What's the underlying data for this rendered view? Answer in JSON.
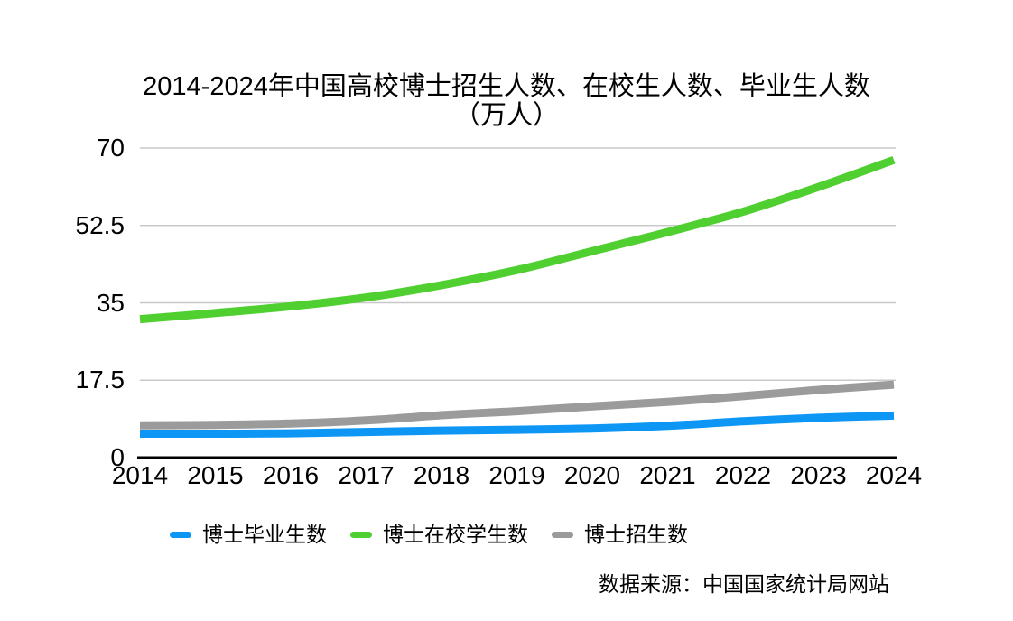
{
  "title": {
    "line1": "2014-2024年中国高校博士招生人数、在校生人数、毕业生人数",
    "line2": "（万人）"
  },
  "source": "数据来源：中国国家统计局网站",
  "colors": {
    "blue": "#0E96F5",
    "green": "#50D030",
    "gray": "#9B9B9B",
    "gridline": "#C8C8C8",
    "axis": "#000000",
    "text": "#000000",
    "background": "#FFFFFF"
  },
  "chart_data": {
    "type": "line",
    "title": "2014-2024年中国高校博士招生人数、在校生人数、毕业生人数（万人）",
    "xlabel": "",
    "ylabel": "",
    "x": [
      2014,
      2015,
      2016,
      2017,
      2018,
      2019,
      2020,
      2021,
      2022,
      2023,
      2024
    ],
    "series": [
      {
        "name": "博士毕业生数",
        "color": "#0E96F5",
        "values": [
          5.4,
          5.4,
          5.5,
          5.8,
          6.1,
          6.3,
          6.6,
          7.2,
          8.2,
          9.0,
          9.5
        ]
      },
      {
        "name": "博士在校学生数",
        "color": "#50D030",
        "values": [
          31.3,
          32.7,
          34.2,
          36.2,
          39.0,
          42.4,
          46.7,
          51.0,
          55.6,
          61.2,
          67.3
        ]
      },
      {
        "name": "博士招生数",
        "color": "#9B9B9B",
        "values": [
          7.3,
          7.4,
          7.7,
          8.4,
          9.6,
          10.5,
          11.6,
          12.6,
          13.9,
          15.3,
          16.5
        ]
      }
    ],
    "yticks": [
      0,
      17.5,
      35,
      52.5,
      70
    ],
    "ylim": [
      0,
      70
    ],
    "grid": true,
    "legend_position": "bottom",
    "source_note": "数据来源：中国国家统计局网站"
  }
}
